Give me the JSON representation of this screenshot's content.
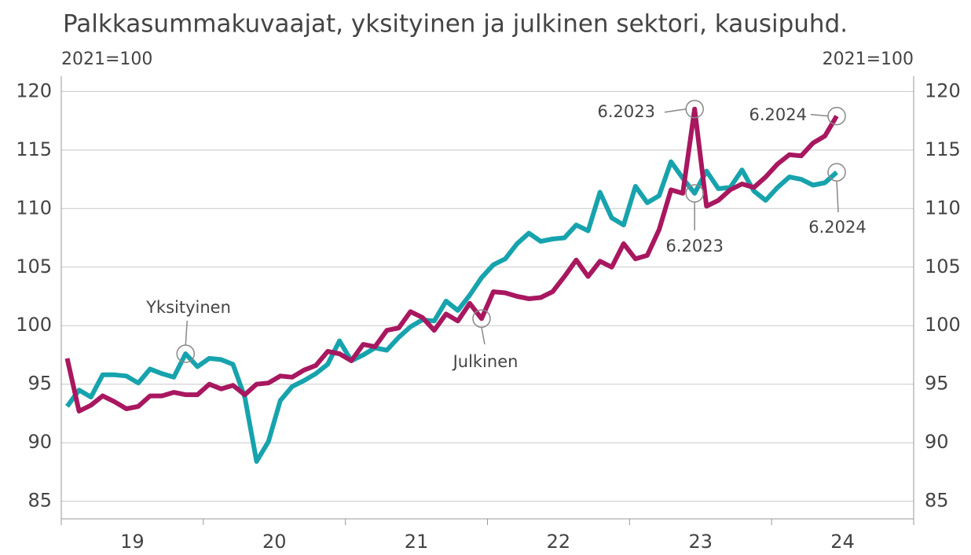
{
  "chart_data": {
    "type": "line",
    "title": "Palkkasummakuvaajat, yksityinen ja julkinen sektori, kausipuhd.",
    "y_label": "2021=100",
    "y2_label": "2021=100",
    "year_labels": [
      "19",
      "20",
      "21",
      "22",
      "23",
      "24"
    ],
    "ylim": [
      83.5,
      121.3
    ],
    "yticks": [
      85,
      90,
      95,
      100,
      105,
      110,
      115,
      120
    ],
    "grid": true,
    "series": [
      {
        "name": "Yksityinen",
        "color": "#17a3ad",
        "values": [
          93.1,
          94.5,
          93.9,
          95.8,
          95.8,
          95.7,
          95.1,
          96.3,
          95.9,
          95.6,
          97.6,
          96.5,
          97.2,
          97.1,
          96.7,
          93.9,
          88.4,
          90.1,
          93.6,
          94.8,
          95.3,
          95.9,
          96.7,
          98.7,
          97.0,
          97.5,
          98.1,
          97.9,
          99.0,
          99.9,
          100.5,
          100.4,
          102.1,
          101.3,
          102.6,
          104.1,
          105.2,
          105.7,
          107.0,
          107.9,
          107.2,
          107.4,
          107.5,
          108.6,
          108.1,
          111.4,
          109.2,
          108.6,
          111.9,
          110.5,
          111.1,
          114.0,
          112.6,
          111.3,
          113.2,
          111.7,
          111.8,
          113.3,
          111.5,
          110.7,
          111.8,
          112.7,
          112.5,
          112.0,
          112.2,
          113.1
        ]
      },
      {
        "name": "Julkinen",
        "color": "#a8175f",
        "values": [
          97.2,
          92.7,
          93.2,
          94.0,
          93.5,
          92.9,
          93.1,
          94.0,
          94.0,
          94.3,
          94.1,
          94.1,
          95.0,
          94.6,
          94.9,
          94.1,
          95.0,
          95.1,
          95.7,
          95.6,
          96.2,
          96.6,
          97.8,
          97.6,
          97.0,
          98.4,
          98.2,
          99.6,
          99.8,
          101.2,
          100.7,
          99.6,
          101.0,
          100.4,
          101.9,
          100.6,
          102.9,
          102.8,
          102.5,
          102.3,
          102.4,
          102.9,
          104.2,
          105.6,
          104.2,
          105.5,
          105.0,
          107.0,
          105.7,
          106.0,
          108.2,
          111.6,
          111.3,
          118.5,
          110.2,
          110.7,
          111.6,
          112.1,
          111.8,
          112.7,
          113.8,
          114.6,
          114.5,
          115.6,
          116.2,
          117.9
        ]
      }
    ],
    "annotations": [
      "6.2023",
      "6.2024",
      "6.2023",
      "6.2024"
    ]
  }
}
